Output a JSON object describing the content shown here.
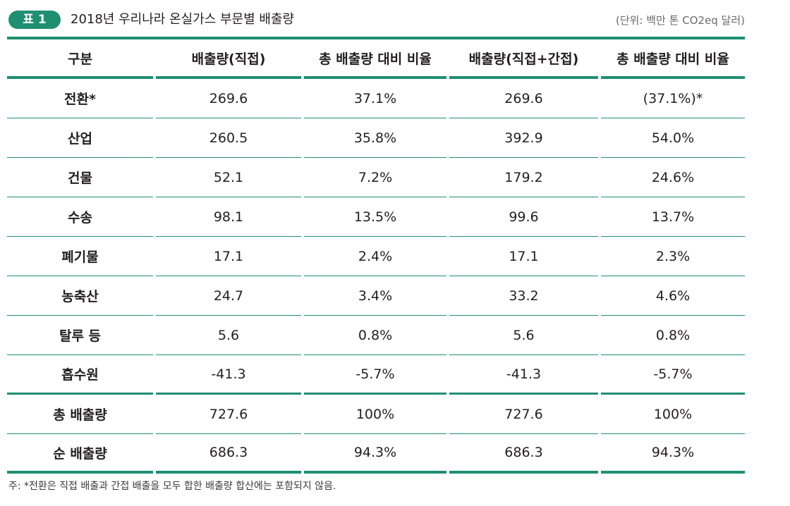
{
  "header": {
    "badge": "표 1",
    "title": "2018년 우리나라 온실가스 부문별 배출량",
    "unit": "(단위: 백만 톤 CO2eq 달러)"
  },
  "table": {
    "columns": [
      "구분",
      "배출량(직접)",
      "총 배출량 대비 비율",
      "배출량(직접+간접)",
      "총 배출량 대비 비율"
    ],
    "rows": [
      [
        "전환*",
        "269.6",
        "37.1%",
        "269.6",
        "(37.1%)*"
      ],
      [
        "산업",
        "260.5",
        "35.8%",
        "392.9",
        "54.0%"
      ],
      [
        "건물",
        "52.1",
        "7.2%",
        "179.2",
        "24.6%"
      ],
      [
        "수송",
        "98.1",
        "13.5%",
        "99.6",
        "13.7%"
      ],
      [
        "폐기물",
        "17.1",
        "2.4%",
        "17.1",
        "2.3%"
      ],
      [
        "농축산",
        "24.7",
        "3.4%",
        "33.2",
        "4.6%"
      ],
      [
        "탈루 등",
        "5.6",
        "0.8%",
        "5.6",
        "0.8%"
      ],
      [
        "흡수원",
        "-41.3",
        "-5.7%",
        "-41.3",
        "-5.7%"
      ],
      [
        "총 배출량",
        "727.6",
        "100%",
        "727.6",
        "100%"
      ],
      [
        "순 배출량",
        "686.3",
        "94.3%",
        "686.3",
        "94.3%"
      ]
    ]
  },
  "note": "주: *전환은 직접 배출과 간접 배출을 모두 합한 배출량 합산에는 포함되지 않음.",
  "colors": {
    "accent": "#1f8f72",
    "text": "#231f20"
  }
}
